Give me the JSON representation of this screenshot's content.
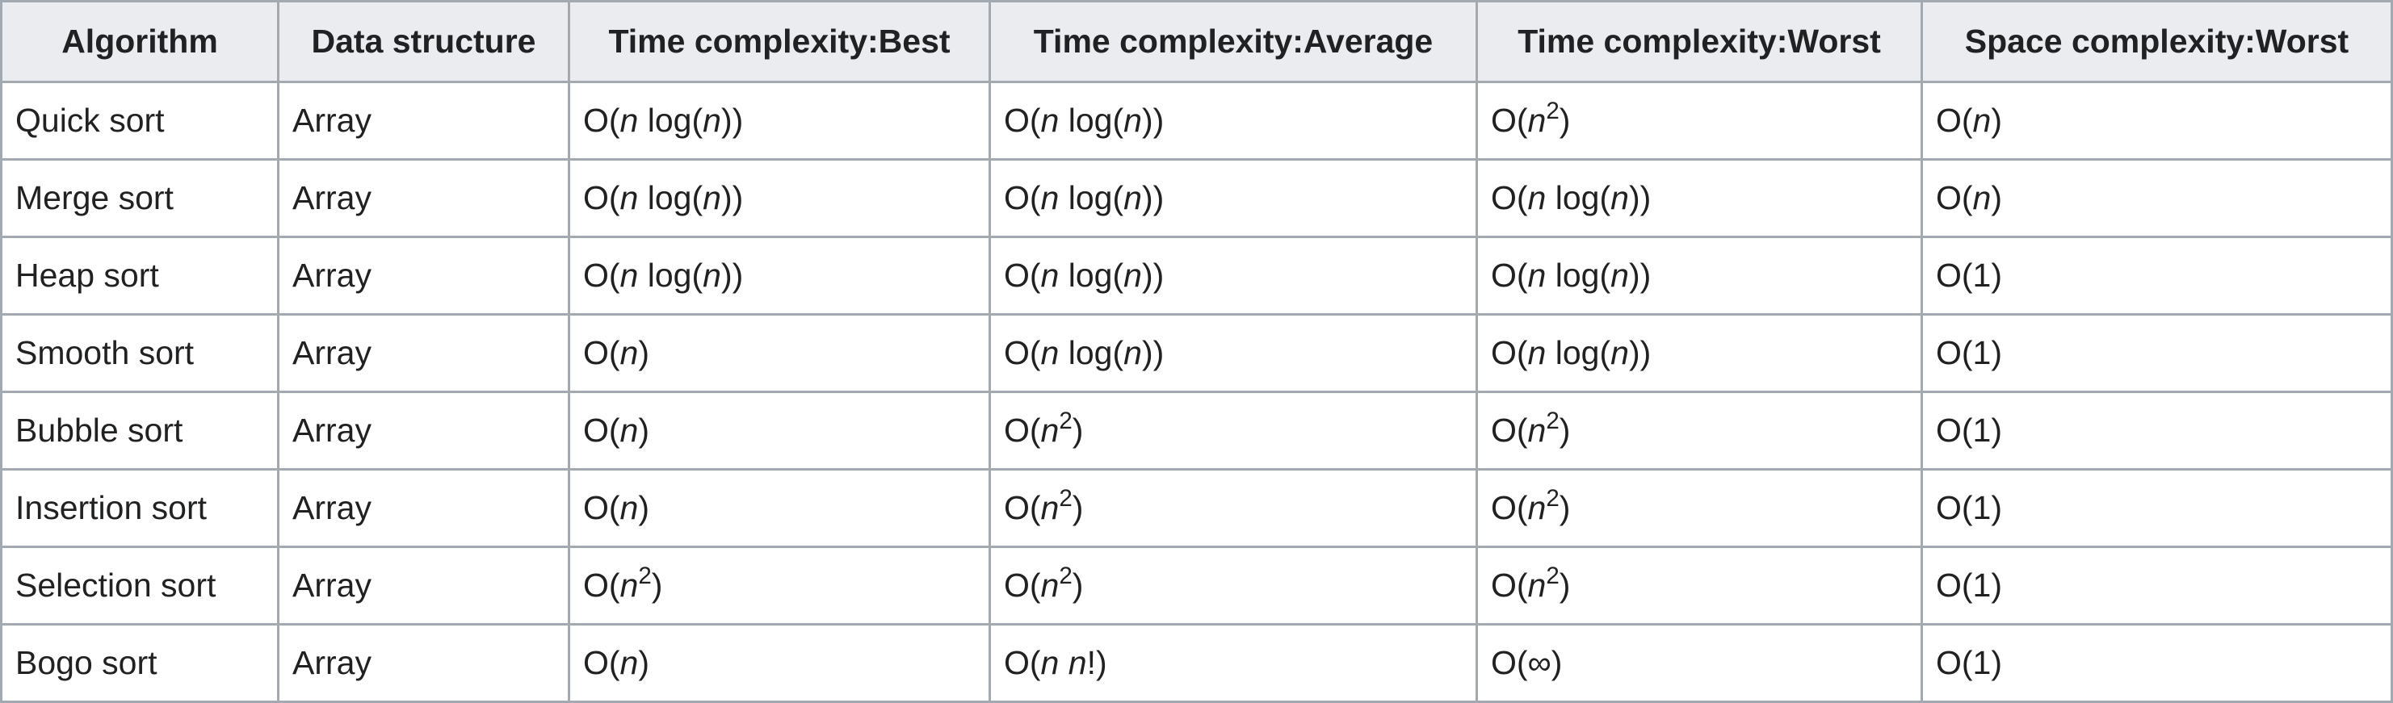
{
  "headers": [
    "Algorithm",
    "Data structure",
    "Time complexity:Best",
    "Time complexity:Average",
    "Time complexity:Worst",
    "Space complexity:Worst"
  ],
  "rows": [
    {
      "algorithm": "Quick sort",
      "structure": "Array",
      "best": "nlogn",
      "average": "nlogn",
      "worst": "n2",
      "space": "n"
    },
    {
      "algorithm": "Merge sort",
      "structure": "Array",
      "best": "nlogn",
      "average": "nlogn",
      "worst": "nlogn",
      "space": "n"
    },
    {
      "algorithm": "Heap sort",
      "structure": "Array",
      "best": "nlogn",
      "average": "nlogn",
      "worst": "nlogn",
      "space": "1"
    },
    {
      "algorithm": "Smooth sort",
      "structure": "Array",
      "best": "n",
      "average": "nlogn",
      "worst": "nlogn",
      "space": "1"
    },
    {
      "algorithm": "Bubble sort",
      "structure": "Array",
      "best": "n",
      "average": "n2",
      "worst": "n2",
      "space": "1"
    },
    {
      "algorithm": "Insertion sort",
      "structure": "Array",
      "best": "n",
      "average": "n2",
      "worst": "n2",
      "space": "1"
    },
    {
      "algorithm": "Selection sort",
      "structure": "Array",
      "best": "n2",
      "average": "n2",
      "worst": "n2",
      "space": "1"
    },
    {
      "algorithm": "Bogo sort",
      "structure": "Array",
      "best": "n",
      "average": "nn!",
      "worst": "inf",
      "space": "1"
    }
  ]
}
